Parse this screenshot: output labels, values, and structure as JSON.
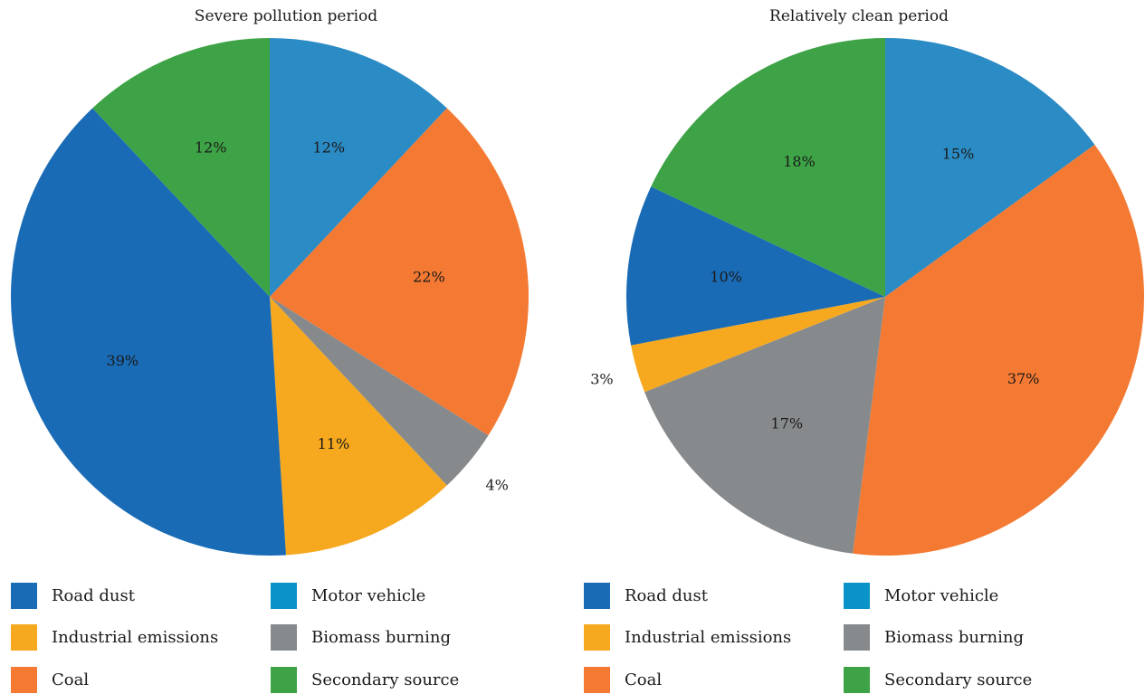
{
  "chart_data": [
    {
      "type": "pie",
      "title": "Severe pollution period",
      "slices": [
        {
          "label": "Motor vehicle",
          "value": 12,
          "display": "12%",
          "color": "#2b8bc4"
        },
        {
          "label": "Coal",
          "value": 22,
          "display": "22%",
          "color": "#f47932"
        },
        {
          "label": "Biomass burning",
          "value": 4,
          "display": "4%",
          "color": "#878a8c"
        },
        {
          "label": "Industrial emissions",
          "value": 11,
          "display": "11%",
          "color": "#f6a91f"
        },
        {
          "label": "Road dust",
          "value": 39,
          "display": "39%",
          "color": "#1a6bb5"
        },
        {
          "label": "Secondary source",
          "value": 12,
          "display": "12%",
          "color": "#3ea346"
        }
      ],
      "legend": [
        {
          "label": "Road dust",
          "color": "#1a6bb5"
        },
        {
          "label": "Motor vehicle",
          "color": "#0a93c8"
        },
        {
          "label": "Industrial emissions",
          "color": "#f6a91f"
        },
        {
          "label": "Biomass burning",
          "color": "#878a8c"
        },
        {
          "label": "Coal",
          "color": "#f47932"
        },
        {
          "label": "Secondary source",
          "color": "#3ea346"
        }
      ],
      "legend_placement": "bottom"
    },
    {
      "type": "pie",
      "title": "Relatively clean period",
      "slices": [
        {
          "label": "Motor vehicle",
          "value": 15,
          "display": "15%",
          "color": "#2b8bc4"
        },
        {
          "label": "Coal",
          "value": 37,
          "display": "37%",
          "color": "#f47932"
        },
        {
          "label": "Biomass burning",
          "value": 17,
          "display": "17%",
          "color": "#878a8c"
        },
        {
          "label": "Industrial emissions",
          "value": 3,
          "display": "3%",
          "color": "#f6a91f"
        },
        {
          "label": "Road dust",
          "value": 10,
          "display": "10%",
          "color": "#1a6bb5"
        },
        {
          "label": "Secondary source",
          "value": 18,
          "display": "18%",
          "color": "#3ea346"
        }
      ],
      "legend": [
        {
          "label": "Road dust",
          "color": "#1a6bb5"
        },
        {
          "label": "Motor vehicle",
          "color": "#0a93c8"
        },
        {
          "label": "Industrial emissions",
          "color": "#f6a91f"
        },
        {
          "label": "Biomass burning",
          "color": "#878a8c"
        },
        {
          "label": "Coal",
          "color": "#f47932"
        },
        {
          "label": "Secondary source",
          "color": "#3ea346"
        }
      ],
      "legend_placement": "bottom"
    }
  ]
}
